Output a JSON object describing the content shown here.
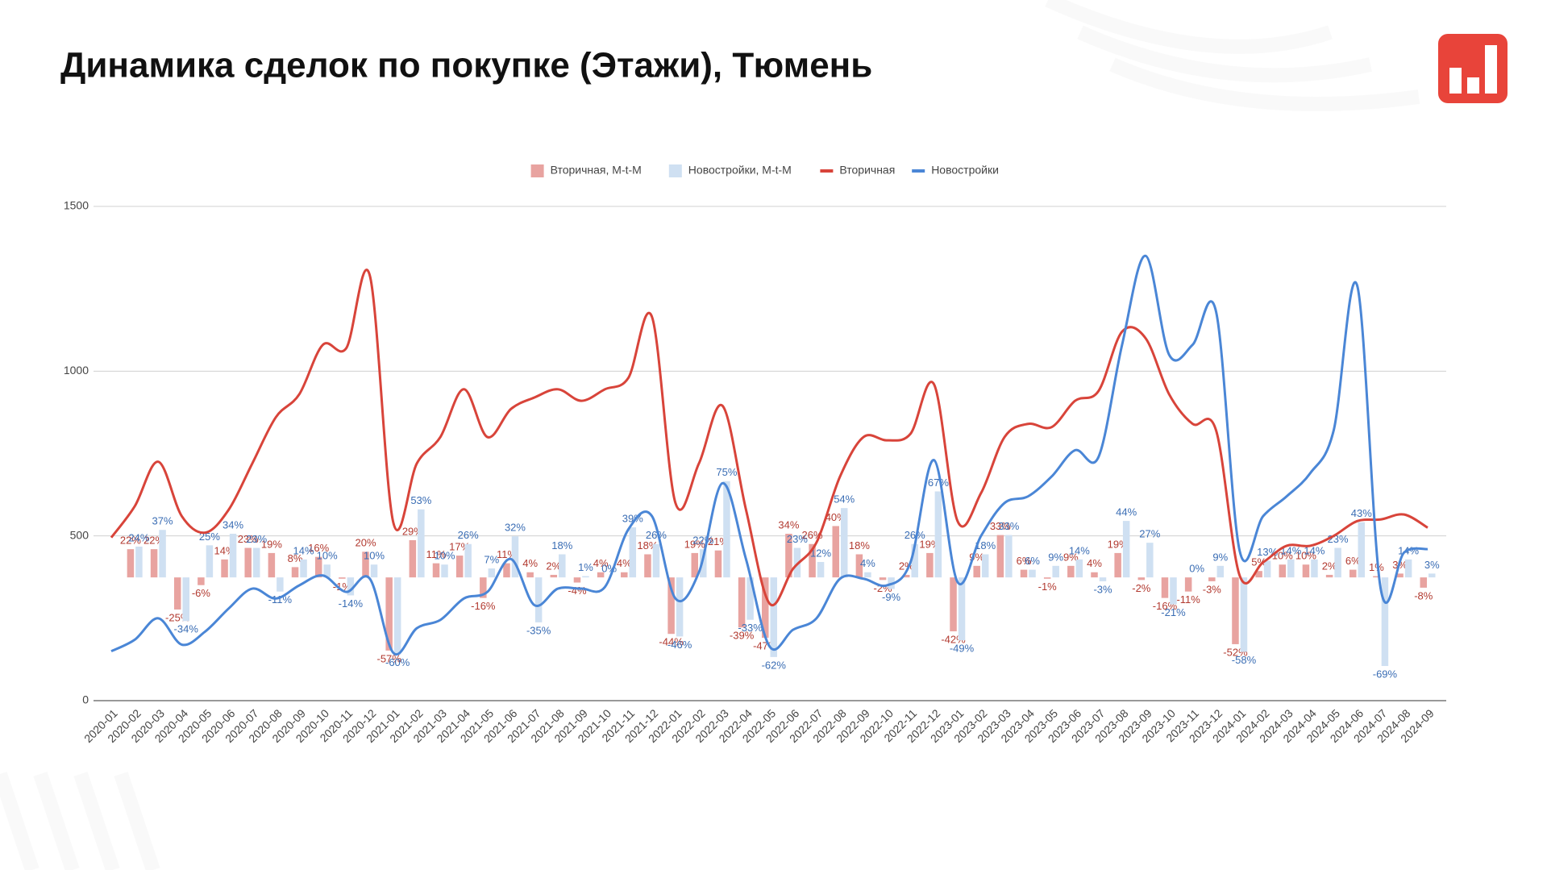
{
  "chart_data": {
    "type": "bar-line",
    "title": "Динамика сделок по покупке (Этажи), Тюмень",
    "categories": [
      "2020-01",
      "2020-02",
      "2020-03",
      "2020-04",
      "2020-05",
      "2020-06",
      "2020-07",
      "2020-08",
      "2020-09",
      "2020-10",
      "2020-11",
      "2020-12",
      "2021-01",
      "2021-02",
      "2021-03",
      "2021-04",
      "2021-05",
      "2021-06",
      "2021-07",
      "2021-08",
      "2021-09",
      "2021-10",
      "2021-11",
      "2021-12",
      "2022-01",
      "2022-02",
      "2022-03",
      "2022-04",
      "2022-05",
      "2022-06",
      "2022-07",
      "2022-08",
      "2022-09",
      "2022-10",
      "2022-11",
      "2022-12",
      "2023-01",
      "2023-02",
      "2023-03",
      "2023-04",
      "2023-05",
      "2023-06",
      "2023-07",
      "2023-08",
      "2023-09",
      "2023-10",
      "2023-11",
      "2023-12",
      "2024-01",
      "2024-02",
      "2024-03",
      "2024-04",
      "2024-05",
      "2024-06",
      "2024-07",
      "2024-08",
      "2024-09"
    ],
    "ylim": [
      0,
      1500
    ],
    "yticks": [
      0,
      500,
      1000,
      1500
    ],
    "y2lim": [
      -96,
      289
    ],
    "grid": true,
    "legend": "top",
    "series": [
      {
        "name": "Вторичная, M-t-M",
        "type": "bar",
        "axis": "y2",
        "color": "#e8a3a0",
        "label_color": "#b23a30",
        "values": [
          null,
          22,
          22,
          -25,
          -6,
          14,
          23,
          19,
          8,
          16,
          -1,
          20,
          -57,
          29,
          11,
          17,
          -16,
          11,
          4,
          2,
          -4,
          4,
          4,
          18,
          -44,
          19,
          21,
          -39,
          -47,
          34,
          26,
          40,
          18,
          -2,
          2,
          19,
          -42,
          9,
          33,
          6,
          -1,
          9,
          4,
          19,
          -2,
          -16,
          -11,
          -3,
          -52,
          5,
          10,
          10,
          2,
          6,
          1,
          3,
          -8
        ],
        "value_labels": [
          null,
          "22%",
          "22%",
          "-25%",
          "-6%",
          "14%",
          "23%",
          "19%",
          "8%",
          "16%",
          "-1%",
          "20%",
          "-57%",
          "29%",
          "11%",
          "17%",
          "-16%",
          "11%",
          "4%",
          "2%",
          "-4%",
          "4%",
          "4%",
          "18%",
          "-44%",
          "19%",
          "21%",
          "-39%",
          "-47%",
          "34%",
          "26%",
          "40%",
          "18%",
          "-2%",
          "2%",
          "19%",
          "-42%",
          "9%",
          "33%",
          "6%",
          "-1%",
          "9%",
          "4%",
          "19%",
          "-2%",
          "-16%",
          "-11%",
          "-3%",
          "-52%",
          "5%",
          "10%",
          "10%",
          "2%",
          "6%",
          "1%",
          "3%",
          "-8%"
        ]
      },
      {
        "name": "Новостройки, M-t-M",
        "type": "bar",
        "axis": "y2",
        "color": "#cfe0f2",
        "label_color": "#3a6db4",
        "values": [
          null,
          24,
          37,
          -34,
          25,
          34,
          23,
          -11,
          14,
          10,
          -14,
          10,
          -60,
          53,
          10,
          26,
          7,
          32,
          -35,
          18,
          1,
          0,
          39,
          26,
          -46,
          22,
          75,
          -33,
          -62,
          23,
          12,
          54,
          4,
          -9,
          26,
          67,
          -49,
          18,
          33,
          6,
          9,
          14,
          -3,
          44,
          27,
          -21,
          0,
          9,
          -58,
          13,
          14,
          14,
          23,
          43,
          -69,
          14,
          3
        ],
        "value_labels": [
          null,
          "24%",
          "37%",
          "-34%",
          "25%",
          "34%",
          "23%",
          "-11%",
          "14%",
          "10%",
          "-14%",
          "10%",
          "-60%",
          "53%",
          "10%",
          "26%",
          "7%",
          "32%",
          "-35%",
          "18%",
          "1%",
          "0%",
          "39%",
          "26%",
          "-46%",
          "22%",
          "75%",
          "-33%",
          "-62%",
          "23%",
          "12%",
          "54%",
          "4%",
          "-9%",
          "26%",
          "67%",
          "-49%",
          "18%",
          "33%",
          "6%",
          "9%",
          "14%",
          "-3%",
          "44%",
          "27%",
          "-21%",
          "0%",
          "9%",
          "-58%",
          "13%",
          "14%",
          "14%",
          "23%",
          "43%",
          "-69%",
          "14%",
          "3%"
        ]
      },
      {
        "name": "Вторичная",
        "type": "line",
        "color": "#d8443a",
        "values": [
          495,
          590,
          725,
          560,
          510,
          580,
          720,
          860,
          930,
          1080,
          1070,
          1290,
          540,
          720,
          800,
          945,
          800,
          885,
          920,
          945,
          910,
          945,
          980,
          1165,
          600,
          720,
          895,
          580,
          295,
          400,
          480,
          680,
          800,
          790,
          810,
          960,
          545,
          630,
          800,
          840,
          830,
          910,
          940,
          1120,
          1100,
          930,
          840,
          820,
          380,
          420,
          470,
          470,
          500,
          545,
          550,
          565,
          525
        ]
      },
      {
        "name": "Новостройки",
        "type": "line",
        "color": "#4a86d6",
        "values": [
          150,
          185,
          250,
          170,
          210,
          280,
          340,
          310,
          350,
          380,
          330,
          370,
          145,
          220,
          245,
          310,
          330,
          430,
          290,
          340,
          340,
          345,
          520,
          560,
          310,
          390,
          660,
          430,
          165,
          215,
          250,
          370,
          370,
          350,
          420,
          730,
          360,
          500,
          600,
          620,
          680,
          760,
          740,
          1080,
          1350,
          1050,
          1080,
          1180,
          455,
          560,
          620,
          690,
          820,
          1260,
          340,
          450,
          460
        ]
      }
    ]
  }
}
